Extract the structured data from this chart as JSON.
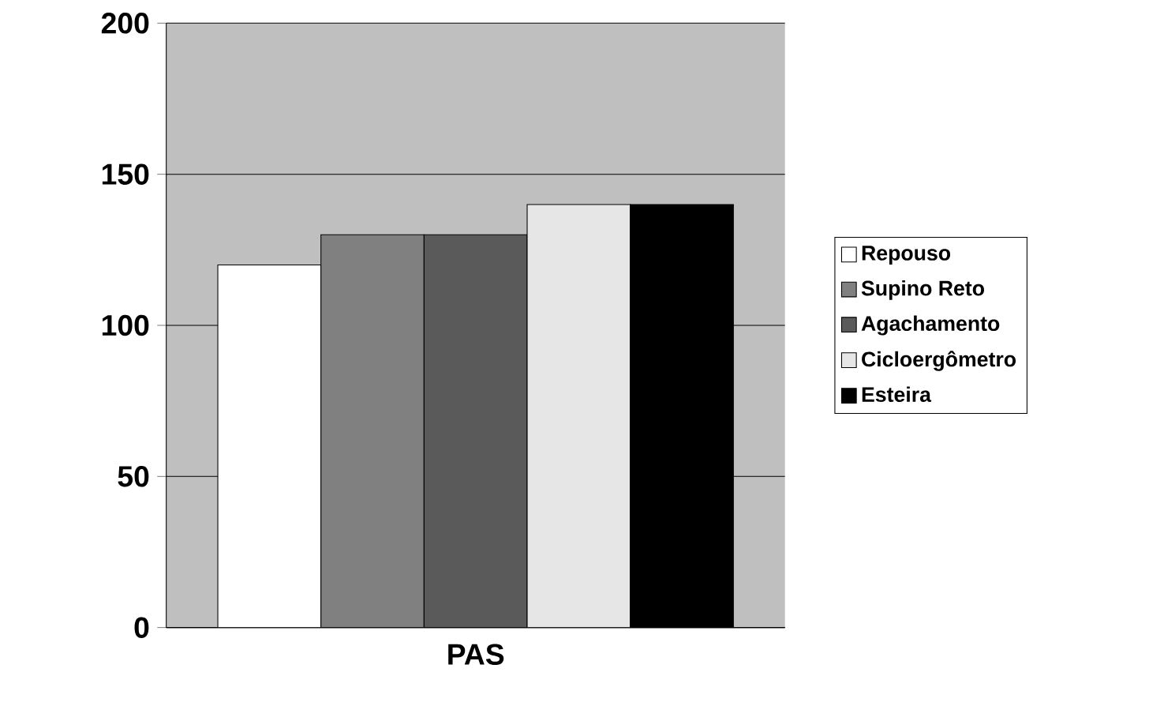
{
  "chart_data": {
    "type": "bar",
    "categories": [
      "PAS"
    ],
    "series": [
      {
        "name": "Repouso",
        "color": "#ffffff",
        "values": [
          120
        ]
      },
      {
        "name": "Supino Reto",
        "color": "#808080",
        "values": [
          130
        ]
      },
      {
        "name": "Agachamento",
        "color": "#5a5a5a",
        "values": [
          130
        ]
      },
      {
        "name": "Cicloergômetro",
        "color": "#e6e6e6",
        "values": [
          140
        ]
      },
      {
        "name": "Esteira",
        "color": "#000000",
        "values": [
          140
        ]
      }
    ],
    "ylim": [
      0,
      200
    ],
    "yticks": [
      0,
      50,
      100,
      150,
      200
    ],
    "grid": "y",
    "legend": "right"
  }
}
